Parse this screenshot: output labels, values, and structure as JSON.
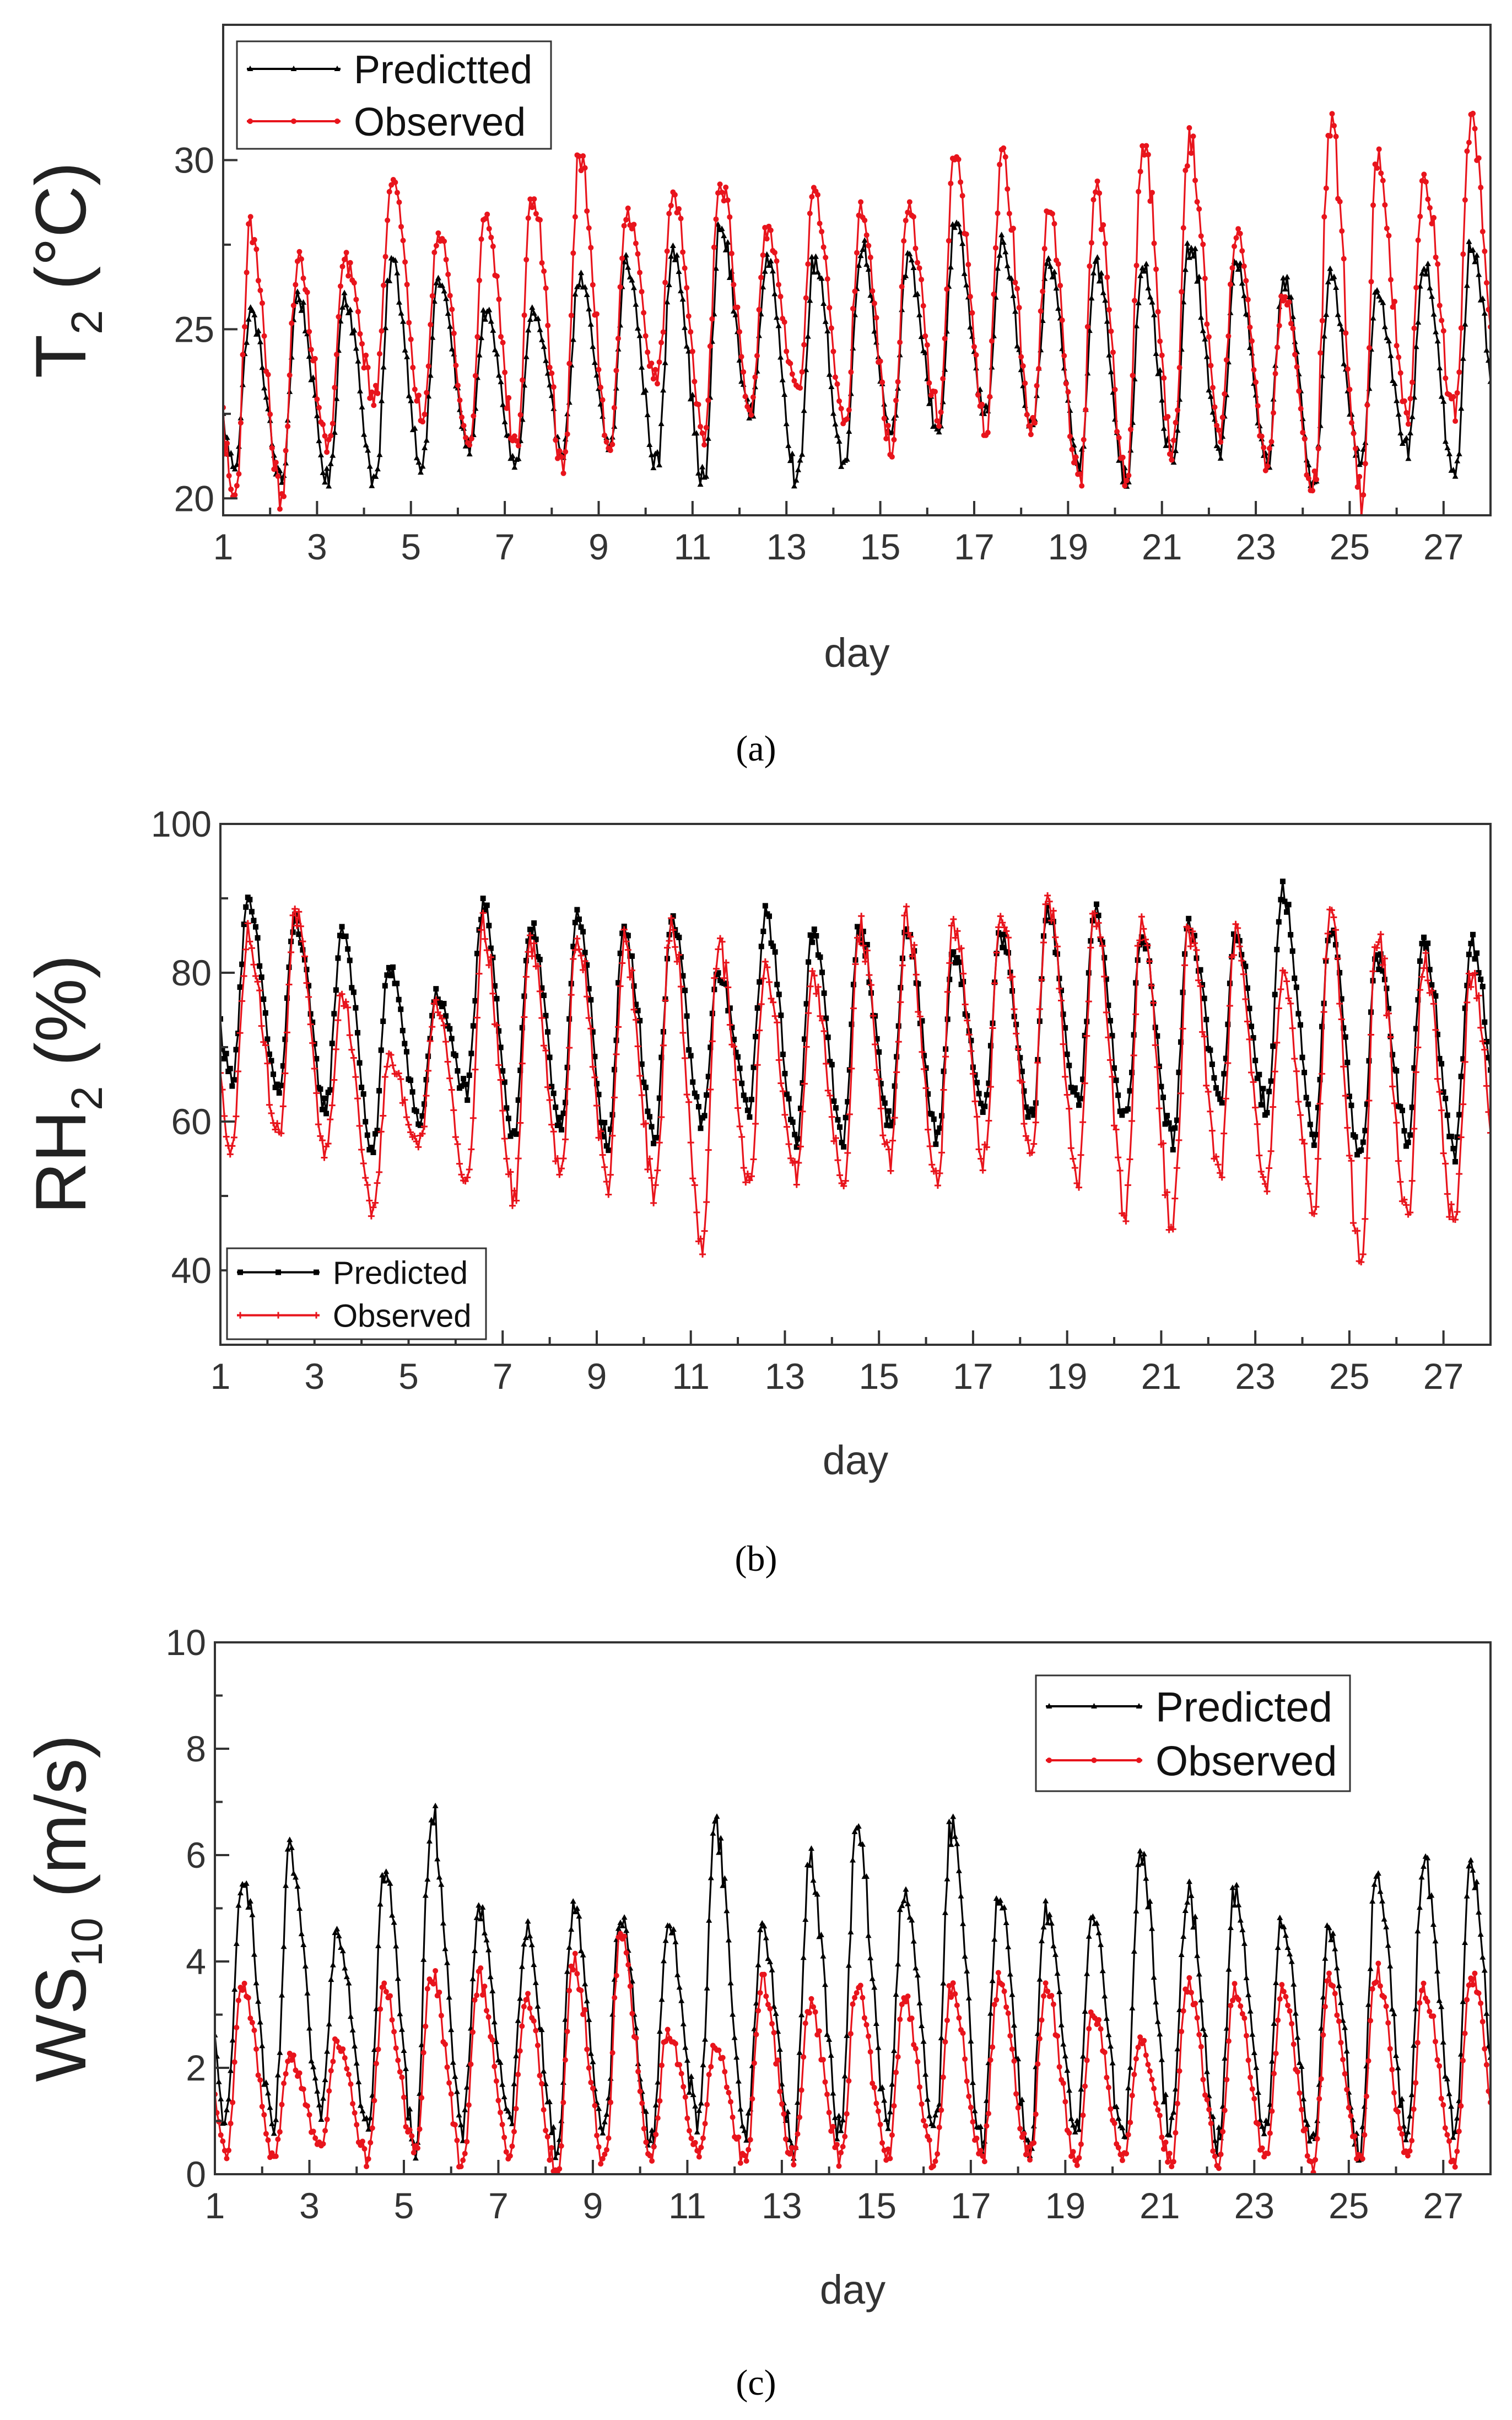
{
  "figure": {
    "captions": [
      "(a)",
      "(b)",
      "(c)"
    ]
  },
  "colors": {
    "predicted": "#000000",
    "observed": "#e8141c",
    "axis": "#333333"
  },
  "chart_data": [
    {
      "type": "line",
      "panel": "a",
      "title": "",
      "xlabel": "day",
      "ylabel": {
        "main": "T",
        "sub": "2",
        "rest": " (°C)"
      },
      "xlim": [
        1,
        28
      ],
      "ylim": [
        19.5,
        34
      ],
      "x_ticks": [
        1,
        3,
        5,
        7,
        9,
        11,
        13,
        15,
        17,
        19,
        21,
        23,
        25,
        27
      ],
      "y_ticks": [
        20,
        25,
        30
      ],
      "legend_position": "top-left",
      "series": [
        {
          "name": "Predictted",
          "color": "#000000",
          "marker": "triangle",
          "daily_max": [
            25.5,
            26.0,
            26.0,
            27.0,
            26.5,
            25.5,
            25.5,
            26.5,
            27.0,
            27.5,
            28.0,
            27.0,
            27.0,
            27.5,
            27.0,
            28.0,
            27.5,
            27.0,
            27.0,
            27.0,
            27.5,
            27.0,
            26.5,
            26.5,
            26.0,
            27.0,
            27.5,
            27.0
          ],
          "daily_min": [
            21.0,
            20.5,
            20.5,
            20.5,
            21.0,
            21.5,
            21.0,
            21.5,
            21.5,
            21.0,
            20.5,
            22.5,
            20.5,
            21.0,
            22.0,
            22.0,
            22.5,
            22.0,
            21.0,
            20.5,
            21.0,
            21.5,
            21.0,
            20.5,
            21.0,
            21.5,
            20.5,
            22.0
          ]
        },
        {
          "name": "Observed",
          "color": "#e8141c",
          "marker": "circle",
          "daily_max": [
            28.0,
            27.0,
            27.0,
            29.5,
            28.0,
            28.5,
            29.0,
            30.0,
            28.5,
            29.0,
            29.5,
            28.0,
            29.0,
            28.5,
            28.5,
            30.0,
            30.0,
            28.5,
            29.0,
            30.5,
            30.5,
            28.0,
            26.0,
            31.0,
            30.0,
            29.5,
            31.0,
            27.0
          ],
          "daily_min": [
            20.0,
            20.0,
            21.5,
            23.0,
            22.5,
            21.5,
            21.5,
            21.0,
            21.5,
            23.5,
            22.0,
            22.5,
            23.0,
            22.0,
            21.5,
            22.5,
            22.0,
            22.0,
            20.5,
            20.5,
            21.5,
            22.0,
            21.0,
            20.5,
            20.0,
            22.5,
            22.5,
            22.0
          ]
        }
      ]
    },
    {
      "type": "line",
      "panel": "b",
      "title": "",
      "xlabel": "day",
      "ylabel": {
        "main": "RH",
        "sub": "2",
        "rest": " (%)"
      },
      "xlim": [
        1,
        28
      ],
      "ylim": [
        30,
        100
      ],
      "x_ticks": [
        1,
        3,
        5,
        7,
        9,
        11,
        13,
        15,
        17,
        19,
        21,
        23,
        25,
        27
      ],
      "y_ticks": [
        40,
        60,
        80,
        100
      ],
      "legend_position": "bottom-left",
      "series": [
        {
          "name": "Predicted",
          "color": "#000000",
          "marker": "square",
          "daily_max": [
            89,
            87,
            86,
            81,
            77,
            89,
            86,
            87,
            86,
            87,
            80,
            88,
            85,
            86,
            86,
            82,
            85,
            88,
            88,
            85,
            87,
            85,
            91,
            86,
            82,
            84,
            84,
            78
          ],
          "daily_min": [
            66,
            64,
            62,
            56,
            60,
            64,
            58,
            60,
            57,
            58,
            60,
            62,
            58,
            58,
            60,
            58,
            62,
            60,
            62,
            60,
            57,
            63,
            62,
            58,
            55,
            58,
            56,
            60
          ],
          "daily_base": [
            80,
            75,
            74,
            72,
            74,
            78,
            72,
            74,
            74,
            74,
            72,
            76,
            74,
            74,
            75,
            74,
            76,
            76,
            76,
            74,
            74,
            76,
            80,
            76,
            72,
            74,
            72,
            74
          ]
        },
        {
          "name": "Observed",
          "color": "#e8141c",
          "marker": "plus",
          "daily_max": [
            85,
            88,
            77,
            68,
            76,
            86,
            84,
            85,
            84,
            87,
            84,
            80,
            79,
            86,
            87,
            86,
            88,
            90,
            88,
            87,
            86,
            85,
            80,
            88,
            85,
            82,
            80,
            70
          ],
          "daily_min": [
            57,
            58,
            56,
            48,
            57,
            52,
            50,
            54,
            52,
            50,
            44,
            52,
            53,
            52,
            55,
            52,
            55,
            57,
            53,
            48,
            46,
            53,
            52,
            48,
            42,
            48,
            46,
            50
          ],
          "daily_base": [
            74,
            72,
            66,
            60,
            66,
            72,
            70,
            72,
            70,
            70,
            66,
            70,
            70,
            70,
            72,
            70,
            72,
            74,
            72,
            70,
            68,
            72,
            70,
            70,
            66,
            68,
            66,
            64
          ]
        }
      ]
    },
    {
      "type": "line",
      "panel": "c",
      "title": "",
      "xlabel": "day",
      "ylabel": {
        "main": "WS",
        "sub": "10",
        "rest": " (m/s)"
      },
      "xlim": [
        1,
        28
      ],
      "ylim": [
        0,
        10
      ],
      "x_ticks": [
        1,
        3,
        5,
        7,
        9,
        11,
        13,
        15,
        17,
        19,
        21,
        23,
        25,
        27
      ],
      "y_ticks": [
        0,
        2,
        4,
        6,
        8,
        10
      ],
      "legend_position": "top-right",
      "series": [
        {
          "name": "Predicted",
          "color": "#000000",
          "marker": "triangle",
          "daily_max": [
            5.7,
            6.0,
            4.6,
            5.7,
            6.8,
            5.0,
            4.6,
            5.0,
            4.8,
            4.7,
            6.6,
            4.6,
            5.9,
            6.5,
            5.4,
            6.5,
            5.3,
            4.9,
            4.9,
            6.0,
            5.3,
            5.3,
            4.8,
            4.6,
            5.6,
            5.9,
            5.8,
            4.5
          ],
          "daily_min": [
            1.0,
            0.8,
            1.2,
            1.0,
            0.6,
            0.8,
            1.0,
            0.5,
            0.8,
            0.6,
            1.0,
            0.8,
            0.5,
            0.8,
            1.0,
            0.8,
            0.6,
            0.5,
            0.8,
            0.6,
            0.8,
            0.6,
            0.8,
            0.6,
            0.5,
            0.8,
            0.8,
            0.6
          ]
        },
        {
          "name": "Observed",
          "color": "#e8141c",
          "marker": "circle",
          "daily_max": [
            3.6,
            2.2,
            2.5,
            3.5,
            3.8,
            3.7,
            3.3,
            4.0,
            4.4,
            2.7,
            2.4,
            3.6,
            3.2,
            3.5,
            3.3,
            3.5,
            3.6,
            3.5,
            3.0,
            2.5,
            3.6,
            3.5,
            3.4,
            3.6,
            3.8,
            3.5,
            3.8,
            2.3
          ],
          "daily_min": [
            0.4,
            0.3,
            0.5,
            0.3,
            0.4,
            0.2,
            0.3,
            0.0,
            0.3,
            0.3,
            0.4,
            0.2,
            0.3,
            0.3,
            0.3,
            0.2,
            0.3,
            0.3,
            0.2,
            0.3,
            0.3,
            0.3,
            0.3,
            0.2,
            0.3,
            0.3,
            0.3,
            0.3
          ]
        }
      ]
    }
  ]
}
